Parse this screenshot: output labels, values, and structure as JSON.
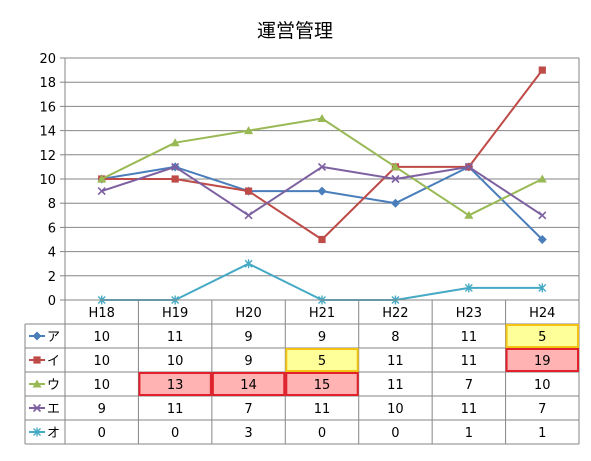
{
  "chart_data": {
    "type": "line",
    "title": "運営管理",
    "categories": [
      "H18",
      "H19",
      "H20",
      "H21",
      "H22",
      "H23",
      "H24"
    ],
    "ylim": [
      0,
      20
    ],
    "yticks": [
      0,
      2,
      4,
      6,
      8,
      10,
      12,
      14,
      16,
      18,
      20
    ],
    "grid": true,
    "legend": "data-table-left",
    "series": [
      {
        "name": "ア",
        "color": "#4a7ebb",
        "marker": "diamond",
        "values": [
          10,
          11,
          9,
          9,
          8,
          11,
          5
        ]
      },
      {
        "name": "イ",
        "color": "#be4b48",
        "marker": "square",
        "values": [
          10,
          10,
          9,
          5,
          11,
          11,
          19
        ]
      },
      {
        "name": "ウ",
        "color": "#98b954",
        "marker": "triangle",
        "values": [
          10,
          13,
          14,
          15,
          11,
          7,
          10
        ]
      },
      {
        "name": "エ",
        "color": "#7d60a0",
        "marker": "x",
        "values": [
          9,
          11,
          7,
          11,
          10,
          11,
          7
        ]
      },
      {
        "name": "オ",
        "color": "#46aac5",
        "marker": "star",
        "values": [
          0,
          0,
          3,
          0,
          0,
          1,
          1
        ]
      }
    ],
    "highlights": [
      {
        "series": 0,
        "category": 6,
        "style": "yellow"
      },
      {
        "series": 1,
        "category": 3,
        "style": "yellow"
      },
      {
        "series": 1,
        "category": 6,
        "style": "red"
      },
      {
        "series": 2,
        "category": 1,
        "style": "red"
      },
      {
        "series": 2,
        "category": 2,
        "style": "red"
      },
      {
        "series": 2,
        "category": 3,
        "style": "red"
      }
    ]
  },
  "colors": {
    "grid": "#868686",
    "axis": "#868686",
    "yellow_fill": "#ffff99",
    "yellow_border": "#f2c314",
    "red_fill": "#ffb3b3",
    "red_border": "#e0202a"
  }
}
